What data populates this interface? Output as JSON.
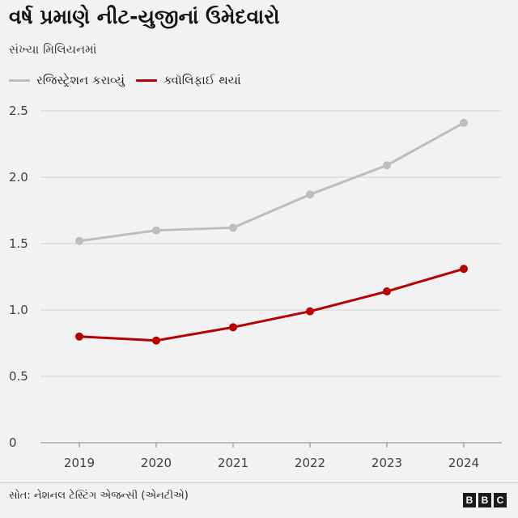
{
  "header": {
    "title": "વર્ષ પ્રમાણે નીટ-યુજીનાં ઉમેદવારો",
    "subtitle": "સંખ્યા મિલિયનમાં"
  },
  "colors": {
    "registered": "#bdbdbd",
    "qualified": "#b80000",
    "background": "#f2f2f2"
  },
  "chart_data": {
    "type": "line",
    "x": [
      "2019",
      "2020",
      "2021",
      "2022",
      "2023",
      "2024"
    ],
    "series": [
      {
        "name": "રજિસ્ટ્રેશન કરાવ્યું",
        "values": [
          1.52,
          1.6,
          1.62,
          1.87,
          2.09,
          2.41
        ]
      },
      {
        "name": "ક્વૉલિફાઈ થયાં",
        "values": [
          0.8,
          0.77,
          0.87,
          0.99,
          1.14,
          1.31
        ]
      }
    ],
    "ylim": [
      0,
      2.5
    ],
    "yticks": [
      "0",
      "0.5",
      "1.0",
      "1.5",
      "2.0",
      "2.5"
    ],
    "title": "વર્ષ પ્રમાણે નીટ-યુજીનાં ઉમેદવારો",
    "subtitle": "સંખ્યા મિલિયનમાં",
    "grid": "horizontal",
    "legend_position": "top-left"
  },
  "footer": {
    "source": "સોત: નેશનલ ટેસ્ટિંગ એજન્સી (એનટીએ)",
    "logo_letters": [
      "B",
      "B",
      "C"
    ]
  }
}
